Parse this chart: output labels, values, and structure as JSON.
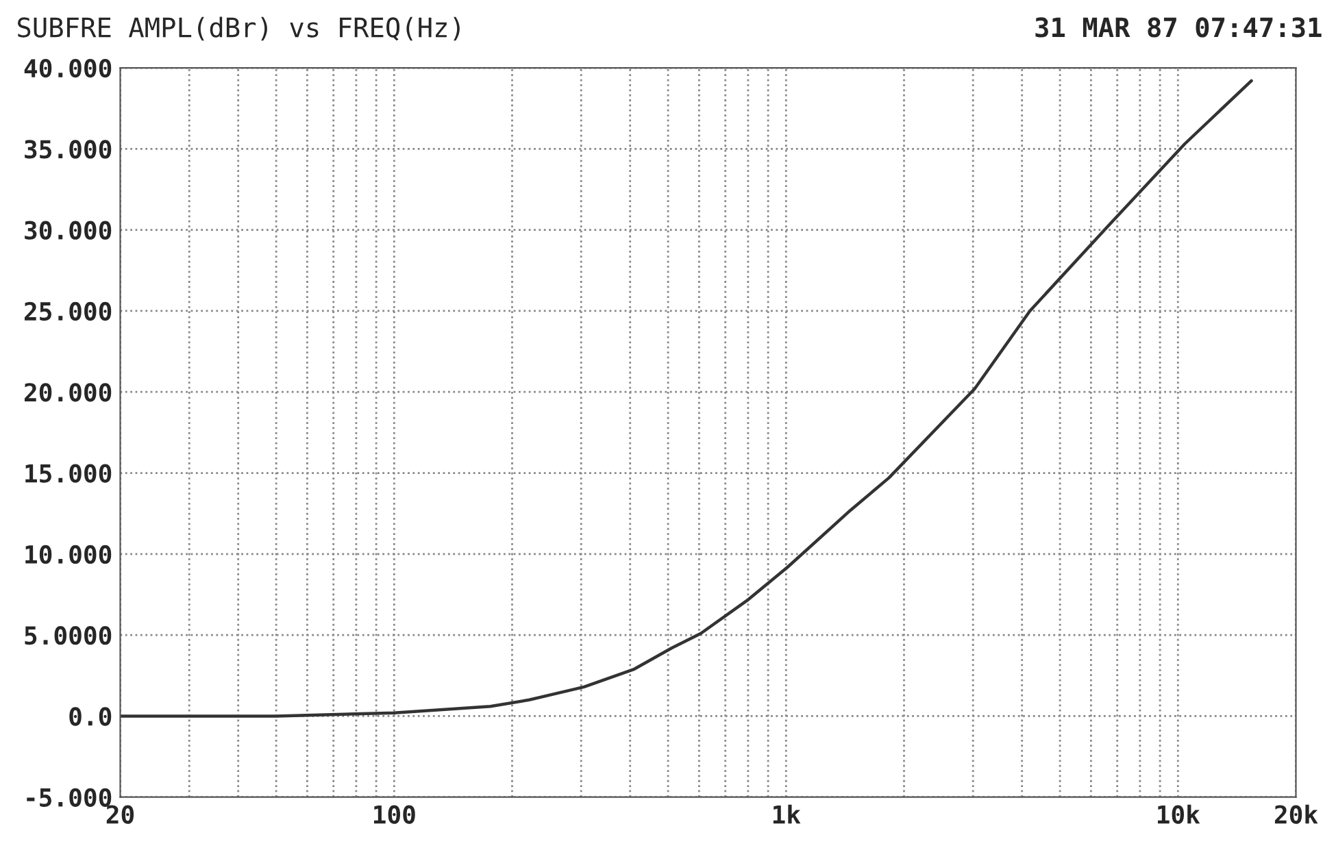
{
  "chart_data": {
    "type": "line",
    "title": "SUBFRE AMPL(dBr) vs FREQ(Hz)",
    "annotations": [
      "31 MAR 87 07:47:31"
    ],
    "log": "x",
    "grid": true,
    "marker": "none",
    "line_style": "solid",
    "xlim": [
      20,
      20000
    ],
    "ylim": [
      -5,
      40
    ],
    "xticks": [
      {
        "value": 20,
        "label": "20"
      },
      {
        "value": 30,
        "label": null
      },
      {
        "value": 40,
        "label": null
      },
      {
        "value": 50,
        "label": null
      },
      {
        "value": 60,
        "label": null
      },
      {
        "value": 70,
        "label": null
      },
      {
        "value": 80,
        "label": null
      },
      {
        "value": 90,
        "label": null
      },
      {
        "value": 100,
        "label": "100"
      },
      {
        "value": 200,
        "label": null
      },
      {
        "value": 300,
        "label": null
      },
      {
        "value": 400,
        "label": null
      },
      {
        "value": 500,
        "label": null
      },
      {
        "value": 600,
        "label": null
      },
      {
        "value": 700,
        "label": null
      },
      {
        "value": 800,
        "label": null
      },
      {
        "value": 900,
        "label": null
      },
      {
        "value": 1000,
        "label": "1k"
      },
      {
        "value": 2000,
        "label": null
      },
      {
        "value": 3000,
        "label": null
      },
      {
        "value": 4000,
        "label": null
      },
      {
        "value": 5000,
        "label": null
      },
      {
        "value": 6000,
        "label": null
      },
      {
        "value": 7000,
        "label": null
      },
      {
        "value": 8000,
        "label": null
      },
      {
        "value": 9000,
        "label": null
      },
      {
        "value": 10000,
        "label": "10k"
      },
      {
        "value": 20000,
        "label": "20k"
      }
    ],
    "yticks": [
      {
        "value": -5,
        "label": "-5.000"
      },
      {
        "value": 0,
        "label": "0.0"
      },
      {
        "value": 5,
        "label": "5.0000"
      },
      {
        "value": 10,
        "label": "10.000"
      },
      {
        "value": 15,
        "label": "15.000"
      },
      {
        "value": 20,
        "label": "20.000"
      },
      {
        "value": 25,
        "label": "25.000"
      },
      {
        "value": 30,
        "label": "30.000"
      },
      {
        "value": 35,
        "label": "35.000"
      },
      {
        "value": 40,
        "label": "40.000"
      }
    ],
    "series": [
      {
        "color": "#333333",
        "x": [
          20,
          50,
          100,
          176,
          221,
          305,
          410,
          511,
          606,
          802,
          1010,
          1460,
          1830,
          3030,
          4190,
          6670,
          10400,
          15400
        ],
        "values": [
          0,
          0,
          0.2,
          0.6,
          1.0,
          1.8,
          2.9,
          4.2,
          5.1,
          7.2,
          9.2,
          12.7,
          14.7,
          20.2,
          25.0,
          30.3,
          35.3,
          39.2
        ]
      }
    ]
  }
}
